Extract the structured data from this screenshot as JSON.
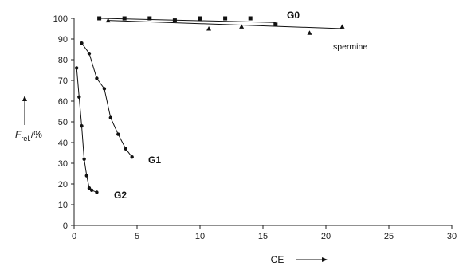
{
  "chart_data": {
    "type": "scatter",
    "title": "",
    "xlabel": "CE",
    "ylabel": "F",
    "ylabel_sub": "rel.",
    "ylabel_suffix": "/%",
    "xlim": [
      0,
      30
    ],
    "ylim": [
      0,
      100
    ],
    "xticks": [
      0,
      5,
      10,
      15,
      20,
      25,
      30
    ],
    "yticks": [
      0,
      10,
      20,
      30,
      40,
      50,
      60,
      70,
      80,
      90,
      100
    ],
    "grid": false,
    "legend": "none",
    "series": [
      {
        "name": "G0",
        "marker": "square",
        "color": "#111111",
        "x": [
          2.0,
          4.0,
          6.0,
          8.0,
          10.0,
          12.0,
          14.0,
          16.0
        ],
        "y": [
          100,
          100,
          100,
          99,
          100,
          100,
          100,
          97
        ],
        "line_x": [
          2.0,
          16.0
        ],
        "line_y": [
          100,
          98
        ]
      },
      {
        "name": "spermine",
        "marker": "triangle",
        "color": "#111111",
        "x": [
          2.7,
          10.7,
          13.3,
          18.7,
          21.3
        ],
        "y": [
          99,
          95,
          96,
          93,
          96
        ],
        "line_x": [
          2.7,
          21.3
        ],
        "line_y": [
          99,
          95
        ]
      },
      {
        "name": "G1",
        "marker": "circle",
        "color": "#111111",
        "x": [
          0.6,
          1.2,
          1.8,
          2.4,
          2.9,
          3.5,
          4.1,
          4.6
        ],
        "y": [
          88,
          83,
          71,
          66,
          52,
          44,
          37,
          33
        ]
      },
      {
        "name": "G2",
        "marker": "circle",
        "color": "#111111",
        "x": [
          0.2,
          0.4,
          0.6,
          0.8,
          1.0,
          1.2,
          1.4,
          1.8
        ],
        "y": [
          76,
          62,
          48,
          32,
          24,
          18,
          17,
          16
        ]
      }
    ]
  }
}
